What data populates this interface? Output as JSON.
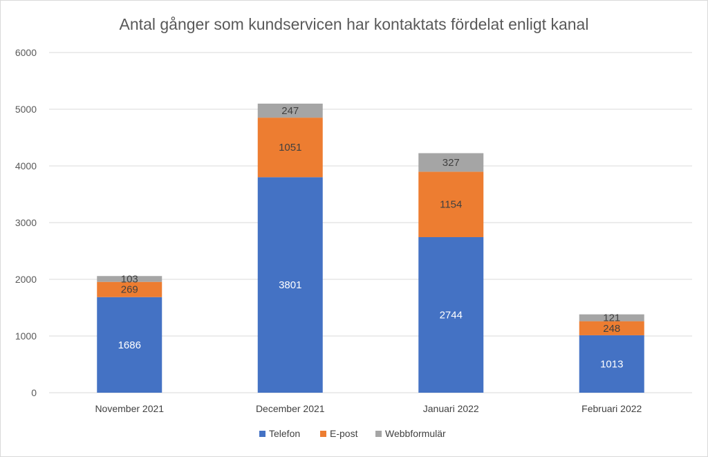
{
  "chart_data": {
    "type": "bar",
    "stacked": true,
    "title": "Antal gånger som kundservicen har kontaktats fördelat enligt kanal",
    "xlabel": "",
    "ylabel": "",
    "ylim": [
      0,
      6000
    ],
    "yticks": [
      0,
      1000,
      2000,
      3000,
      4000,
      5000,
      6000
    ],
    "grid": true,
    "legend_position": "bottom",
    "categories": [
      "November 2021",
      "December 2021",
      "Januari 2022",
      "Februari 2022"
    ],
    "series": [
      {
        "name": "Telefon",
        "color": "#4472c4",
        "label_color": "light",
        "values": [
          1686,
          3801,
          2744,
          1013
        ]
      },
      {
        "name": "E-post",
        "color": "#ed7d31",
        "label_color": "dark",
        "values": [
          269,
          1051,
          1154,
          248
        ]
      },
      {
        "name": "Webbformulär",
        "color": "#a5a5a5",
        "label_color": "dark",
        "values": [
          103,
          247,
          327,
          121
        ]
      }
    ]
  }
}
